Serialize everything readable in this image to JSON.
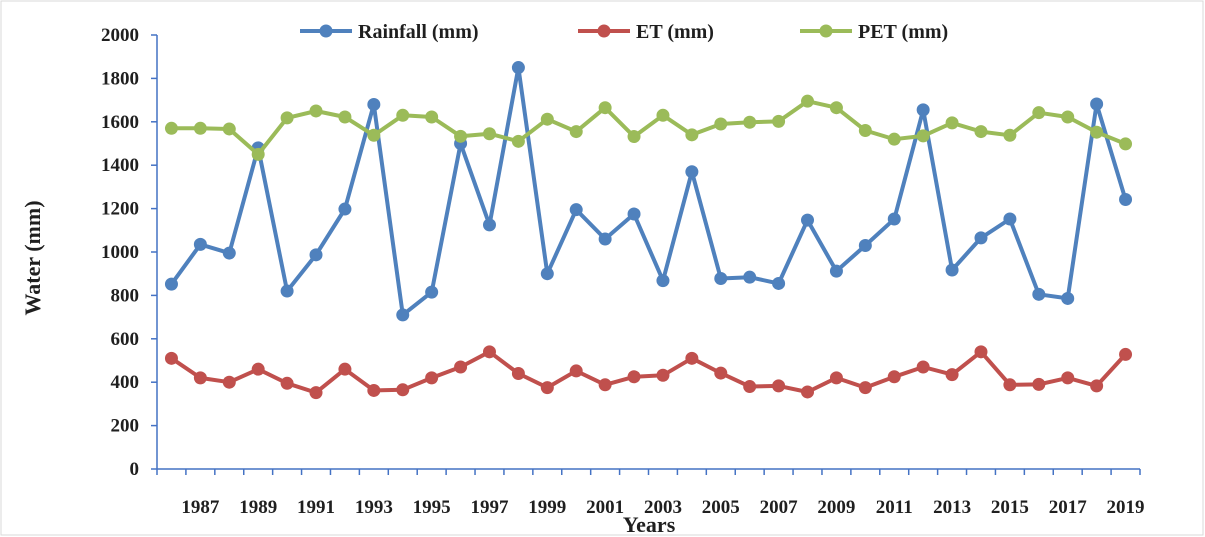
{
  "chart_data": {
    "type": "line",
    "xlabel": "Years",
    "ylabel": "Water (mm)",
    "ylim": [
      0,
      2000
    ],
    "yticks": [
      "0",
      "200",
      "400",
      "600",
      "800",
      "1000",
      "1200",
      "1400",
      "1600",
      "1800",
      "2000"
    ],
    "x": [
      1986,
      1987,
      1988,
      1989,
      1990,
      1991,
      1992,
      1993,
      1994,
      1995,
      1996,
      1997,
      1998,
      1999,
      2000,
      2001,
      2002,
      2003,
      2004,
      2005,
      2006,
      2007,
      2008,
      2009,
      2010,
      2011,
      2012,
      2013,
      2014,
      2015,
      2016,
      2017,
      2018,
      2019
    ],
    "xticks": [
      "1987",
      "1989",
      "1991",
      "1993",
      "1995",
      "1997",
      "1999",
      "2001",
      "2003",
      "2005",
      "2007",
      "2009",
      "2011",
      "2013",
      "2015",
      "2017",
      "2019"
    ],
    "legend_position": "top",
    "grid": false,
    "series": [
      {
        "name": "Rainfall (mm)",
        "color": "#4f81bd",
        "values": [
          852,
          1035,
          995,
          1480,
          820,
          987,
          1198,
          1680,
          710,
          815,
          1500,
          1125,
          1850,
          900,
          1195,
          1060,
          1175,
          868,
          1370,
          878,
          884,
          855,
          1147,
          912,
          1030,
          1152,
          1655,
          917,
          1065,
          1152,
          805,
          786,
          1682,
          1242
        ]
      },
      {
        "name": "ET (mm)",
        "color": "#c0504d",
        "values": [
          510,
          420,
          400,
          460,
          395,
          352,
          460,
          362,
          365,
          420,
          470,
          540,
          440,
          375,
          452,
          388,
          425,
          432,
          510,
          442,
          380,
          383,
          355,
          420,
          375,
          425,
          470,
          435,
          540,
          388,
          390,
          420,
          383,
          528
        ]
      },
      {
        "name": "PET (mm)",
        "color": "#9bbb59",
        "values": [
          1570,
          1570,
          1567,
          1450,
          1618,
          1650,
          1622,
          1538,
          1630,
          1622,
          1533,
          1545,
          1510,
          1612,
          1555,
          1665,
          1532,
          1630,
          1540,
          1590,
          1598,
          1602,
          1695,
          1665,
          1560,
          1520,
          1535,
          1595,
          1555,
          1538,
          1642,
          1622,
          1552,
          1498
        ]
      }
    ]
  }
}
